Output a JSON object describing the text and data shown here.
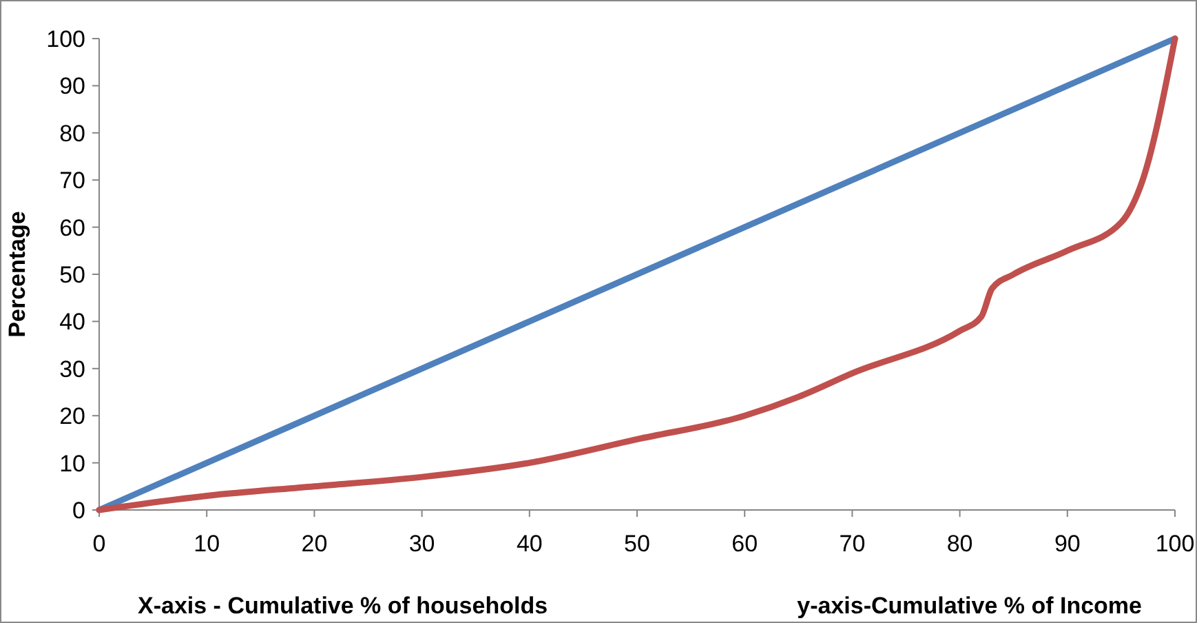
{
  "chart_data": {
    "type": "line",
    "ylabel": "Percentage",
    "xlabel": "X-axis - Cumulative % of households",
    "annotations": [
      "y-axis-Cumulative % of Income"
    ],
    "xlim": [
      0,
      100
    ],
    "xticks": [
      0,
      10,
      20,
      30,
      40,
      50,
      60,
      70,
      80,
      90,
      100
    ],
    "ylim": [
      0,
      100
    ],
    "yticks": [
      0,
      10,
      20,
      30,
      40,
      50,
      60,
      70,
      80,
      90,
      100
    ],
    "grid": false,
    "marker": "none",
    "line_style": "solid",
    "series": [
      {
        "color": "#4f81bd",
        "x": [
          0,
          100
        ],
        "values": [
          0,
          100
        ]
      },
      {
        "color": "#c0504d",
        "x": [
          0,
          10,
          20,
          30,
          40,
          50,
          60,
          65,
          70,
          80,
          82,
          83,
          85,
          90,
          95,
          97,
          100
        ],
        "values": [
          0,
          3,
          5,
          7,
          10,
          15,
          20,
          24,
          29,
          38,
          41,
          47,
          50,
          55,
          61,
          70,
          100
        ]
      }
    ]
  }
}
